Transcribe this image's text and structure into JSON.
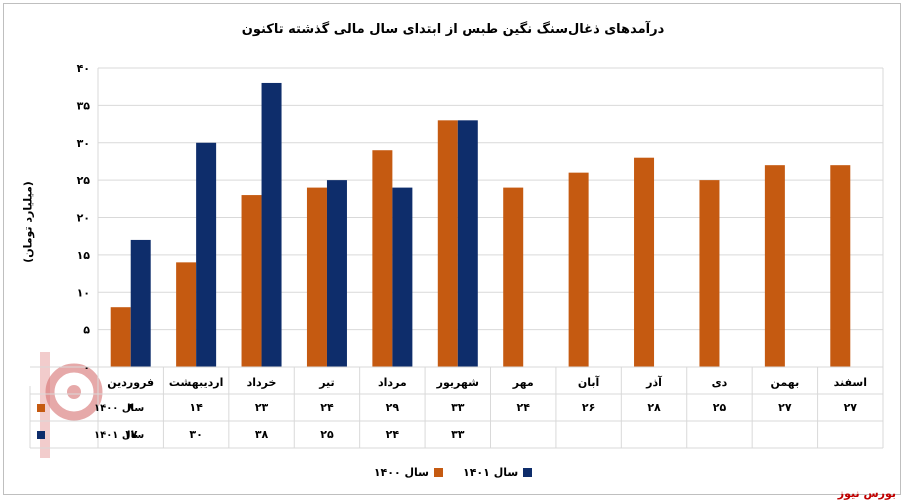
{
  "chart_data": {
    "type": "bar",
    "title": "درآمدهای ذغال‌سنگ نگین طبس از ابتدای سال مالی گذشته تاکنون",
    "ylabel": "(میلیارد تومان)",
    "ylim": [
      0,
      40
    ],
    "yticks": [
      0,
      5,
      10,
      15,
      20,
      25,
      30,
      35,
      40
    ],
    "ytick_labels": [
      "۰",
      "۵",
      "۱۰",
      "۱۵",
      "۲۰",
      "۲۵",
      "۳۰",
      "۳۵",
      "۴۰"
    ],
    "categories": [
      "فروردین",
      "اردیبهشت",
      "خرداد",
      "تیر",
      "مرداد",
      "شهریور",
      "مهر",
      "آبان",
      "آذر",
      "دی",
      "بهمن",
      "اسفند"
    ],
    "grid": true,
    "legend_position": "bottom",
    "series": [
      {
        "name": "سال ۱۴۰۰",
        "color": "#c55a11",
        "values": [
          8,
          14,
          23,
          24,
          29,
          33,
          24,
          26,
          28,
          25,
          27,
          27
        ],
        "labels": [
          "۸",
          "۱۴",
          "۲۳",
          "۲۴",
          "۲۹",
          "۳۳",
          "۲۴",
          "۲۶",
          "۲۸",
          "۲۵",
          "۲۷",
          "۲۷"
        ]
      },
      {
        "name": "سال ۱۴۰۱",
        "color": "#0e2d6b",
        "values": [
          17,
          30,
          38,
          25,
          24,
          33,
          null,
          null,
          null,
          null,
          null,
          null
        ],
        "labels": [
          "۱۷",
          "۳۰",
          "۳۸",
          "۲۵",
          "۲۴",
          "۳۳",
          "",
          "",
          "",
          "",
          "",
          ""
        ]
      }
    ]
  },
  "source": "بورس نیوز"
}
